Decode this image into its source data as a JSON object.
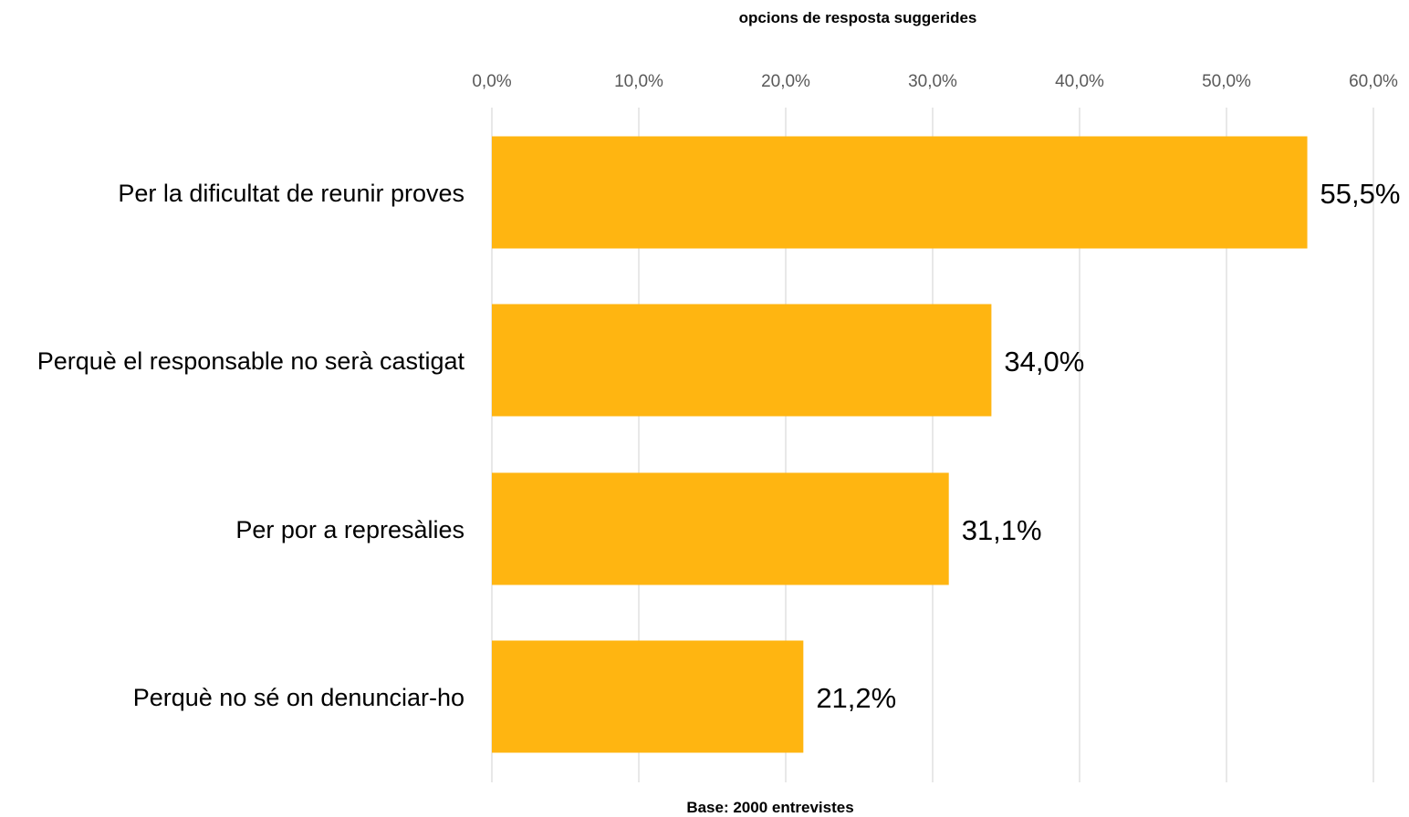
{
  "chart_data": {
    "type": "bar",
    "orientation": "horizontal",
    "title": "opcions de resposta suggerides",
    "footnote": "Base: 2000 entrevistes",
    "categories": [
      "Per la dificultat de reunir proves",
      "Perquè el responsable no serà castigat",
      "Per por a represàlies",
      "Perquè no sé on denunciar-ho"
    ],
    "values": [
      55.5,
      34.0,
      31.1,
      21.2
    ],
    "value_labels": [
      "55,5%",
      "34,0%",
      "31,1%",
      "21,2%"
    ],
    "xlim": [
      0,
      60
    ],
    "x_ticks": [
      0,
      10,
      20,
      30,
      40,
      50,
      60
    ],
    "x_tick_labels": [
      "0,0%",
      "10,0%",
      "20,0%",
      "30,0%",
      "40,0%",
      "50,0%",
      "60,0%"
    ],
    "x_axis_position": "top",
    "grid": true,
    "legend": "none",
    "bar_color": "#FFB511",
    "grid_color": "#D9D9D9"
  }
}
